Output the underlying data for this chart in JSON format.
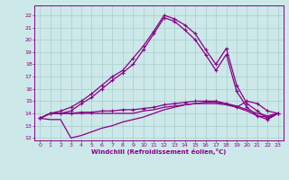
{
  "bg_color": "#cce8e8",
  "grid_color": "#aacccc",
  "line_color": "#880088",
  "xlabel": "Windchill (Refroidissement éolien,°C)",
  "xlim": [
    -0.5,
    23.5
  ],
  "ylim": [
    11.8,
    22.8
  ],
  "yticks": [
    12,
    13,
    14,
    15,
    16,
    17,
    18,
    19,
    20,
    21,
    22
  ],
  "xticks": [
    0,
    1,
    2,
    3,
    4,
    5,
    6,
    7,
    8,
    9,
    10,
    11,
    12,
    13,
    14,
    15,
    16,
    17,
    18,
    19,
    20,
    21,
    22,
    23
  ],
  "series": [
    {
      "x": [
        0,
        1,
        2,
        3,
        4,
        5,
        6,
        7,
        8,
        9,
        10,
        11,
        12,
        13,
        14,
        15,
        16,
        17,
        18,
        19,
        20,
        21,
        22,
        23
      ],
      "y": [
        13.6,
        14.0,
        14.2,
        14.5,
        15.0,
        15.6,
        16.3,
        17.0,
        17.5,
        18.5,
        19.5,
        20.7,
        22.0,
        21.7,
        21.2,
        20.5,
        19.2,
        18.0,
        19.3,
        16.3,
        14.8,
        14.2,
        13.6,
        14.0
      ],
      "marker": true,
      "lw": 0.9
    },
    {
      "x": [
        0,
        1,
        2,
        3,
        4,
        5,
        6,
        7,
        8,
        9,
        10,
        11,
        12,
        13,
        14,
        15,
        16,
        17,
        18,
        19,
        20,
        21,
        22,
        23
      ],
      "y": [
        13.6,
        14.0,
        14.0,
        14.2,
        14.8,
        15.3,
        16.0,
        16.7,
        17.3,
        18.0,
        19.2,
        20.5,
        21.8,
        21.5,
        20.8,
        20.0,
        18.8,
        17.5,
        18.8,
        15.8,
        14.5,
        13.8,
        13.5,
        14.0
      ],
      "marker": true,
      "lw": 0.9
    },
    {
      "x": [
        0,
        1,
        2,
        3,
        4,
        5,
        6,
        7,
        8,
        9,
        10,
        11,
        12,
        13,
        14,
        15,
        16,
        17,
        18,
        19,
        20,
        21,
        22,
        23
      ],
      "y": [
        13.6,
        14.0,
        14.0,
        14.0,
        14.1,
        14.1,
        14.2,
        14.2,
        14.3,
        14.3,
        14.4,
        14.5,
        14.7,
        14.8,
        14.9,
        15.0,
        15.0,
        15.0,
        14.8,
        14.5,
        15.0,
        14.8,
        14.2,
        14.0
      ],
      "marker": true,
      "lw": 0.9
    },
    {
      "x": [
        0,
        1,
        2,
        3,
        4,
        5,
        6,
        7,
        8,
        9,
        10,
        11,
        12,
        13,
        14,
        15,
        16,
        17,
        18,
        19,
        20,
        21,
        22,
        23
      ],
      "y": [
        13.6,
        14.0,
        14.0,
        14.0,
        14.0,
        14.0,
        14.0,
        14.0,
        14.0,
        14.0,
        14.2,
        14.3,
        14.5,
        14.6,
        14.7,
        14.8,
        14.9,
        14.9,
        14.8,
        14.6,
        14.3,
        14.0,
        13.8,
        14.0
      ],
      "marker": false,
      "lw": 0.9
    },
    {
      "x": [
        0,
        1,
        2,
        3,
        4,
        5,
        6,
        7,
        8,
        9,
        10,
        11,
        12,
        13,
        14,
        15,
        16,
        17,
        18,
        19,
        20,
        21,
        22,
        23
      ],
      "y": [
        13.6,
        13.5,
        13.5,
        12.0,
        12.2,
        12.5,
        12.8,
        13.0,
        13.3,
        13.5,
        13.7,
        14.0,
        14.3,
        14.5,
        14.7,
        14.8,
        14.8,
        14.8,
        14.7,
        14.5,
        14.2,
        13.8,
        13.7,
        14.0
      ],
      "marker": false,
      "lw": 0.9
    }
  ]
}
